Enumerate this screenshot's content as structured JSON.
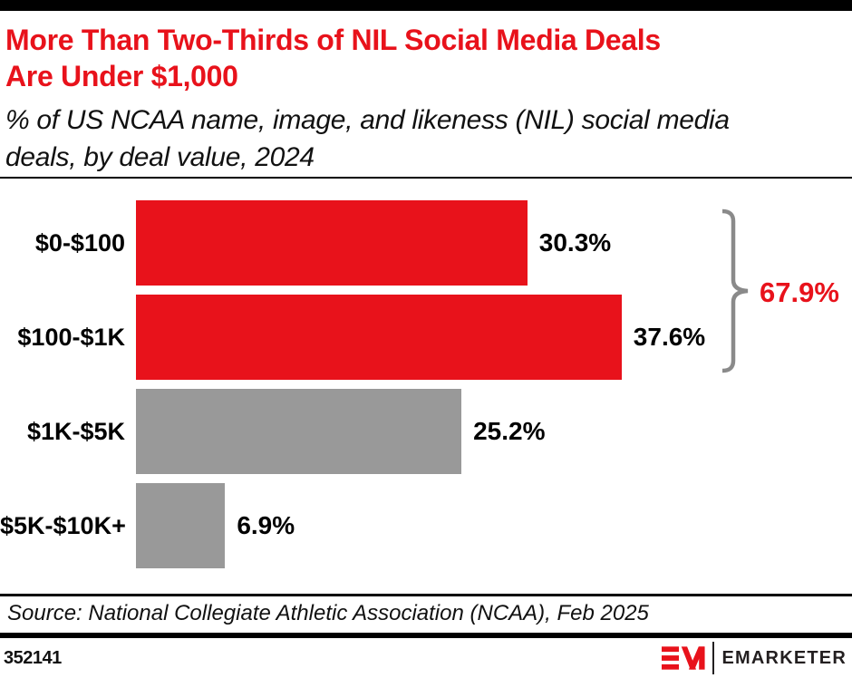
{
  "header": {
    "title_lines": [
      "More Than Two-Thirds of NIL Social Media Deals",
      "Are Under $1,000"
    ],
    "subtitle": "% of US NCAA name, image, and likeness (NIL) social media deals, by deal value, 2024"
  },
  "chart_data": {
    "type": "bar",
    "orientation": "horizontal",
    "title": "More Than Two-Thirds of NIL Social Media Deals Are Under $1,000",
    "subtitle": "% of US NCAA name, image, and likeness (NIL) social media deals, by deal value, 2024",
    "categories": [
      "$0-$100",
      "$100-$1K",
      "$1K-$5K",
      "$5K-$10K+"
    ],
    "values": [
      30.3,
      37.6,
      25.2,
      6.9
    ],
    "value_labels": [
      "30.3%",
      "37.6%",
      "25.2%",
      "6.9%"
    ],
    "unit": "%",
    "xlim": [
      0,
      40
    ],
    "grid": false,
    "legend": false,
    "bar_colors": [
      "#E8121B",
      "#E8121B",
      "#999999",
      "#999999"
    ],
    "annotation": {
      "label": "67.9%",
      "color": "#E8121B",
      "bracket_color": "#8A8A8A",
      "spans": [
        "$0-$100",
        "$100-$1K"
      ]
    }
  },
  "source_line": "Source: National Collegiate Athletic Association (NCAA), Feb 2025",
  "footer": {
    "chart_id": "352141",
    "brand": "EMARKETER"
  },
  "colors": {
    "accent_red": "#E8121B",
    "bar_gray": "#999999",
    "bracket_gray": "#8A8A8A",
    "black": "#000000"
  }
}
